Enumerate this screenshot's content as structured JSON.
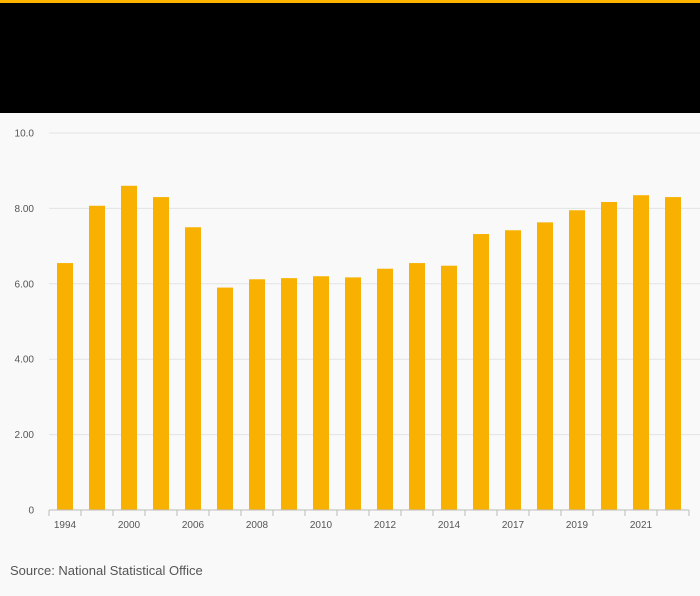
{
  "theme": {
    "accent_color": "#ffb400",
    "bar_color": "#f8b100",
    "header_band_color": "#000000",
    "grid_color": "#e3e3e3",
    "background_color": "#f9f9f9"
  },
  "footer": {
    "source_text": "Source: National Statistical Office"
  },
  "chart_data": {
    "type": "bar",
    "title": "",
    "xlabel": "",
    "ylabel": "",
    "ylim": [
      0,
      10
    ],
    "y_ticks": [
      0,
      2,
      4,
      6,
      8,
      10
    ],
    "y_tick_labels": [
      "0",
      "2.00",
      "4.00",
      "6.00",
      "8.00",
      "10.0"
    ],
    "grid": true,
    "categories": [
      "1994",
      "",
      "2000",
      "",
      "2006",
      "",
      "2008",
      "",
      "2010",
      "",
      "2012",
      "",
      "2014",
      "",
      "2017",
      "",
      "2019",
      "",
      "2021",
      ""
    ],
    "values": [
      6.55,
      8.07,
      8.6,
      8.3,
      7.5,
      5.9,
      6.12,
      6.15,
      6.2,
      6.17,
      6.4,
      6.55,
      6.48,
      7.32,
      7.42,
      7.63,
      7.95,
      8.17,
      8.35,
      8.3
    ]
  }
}
